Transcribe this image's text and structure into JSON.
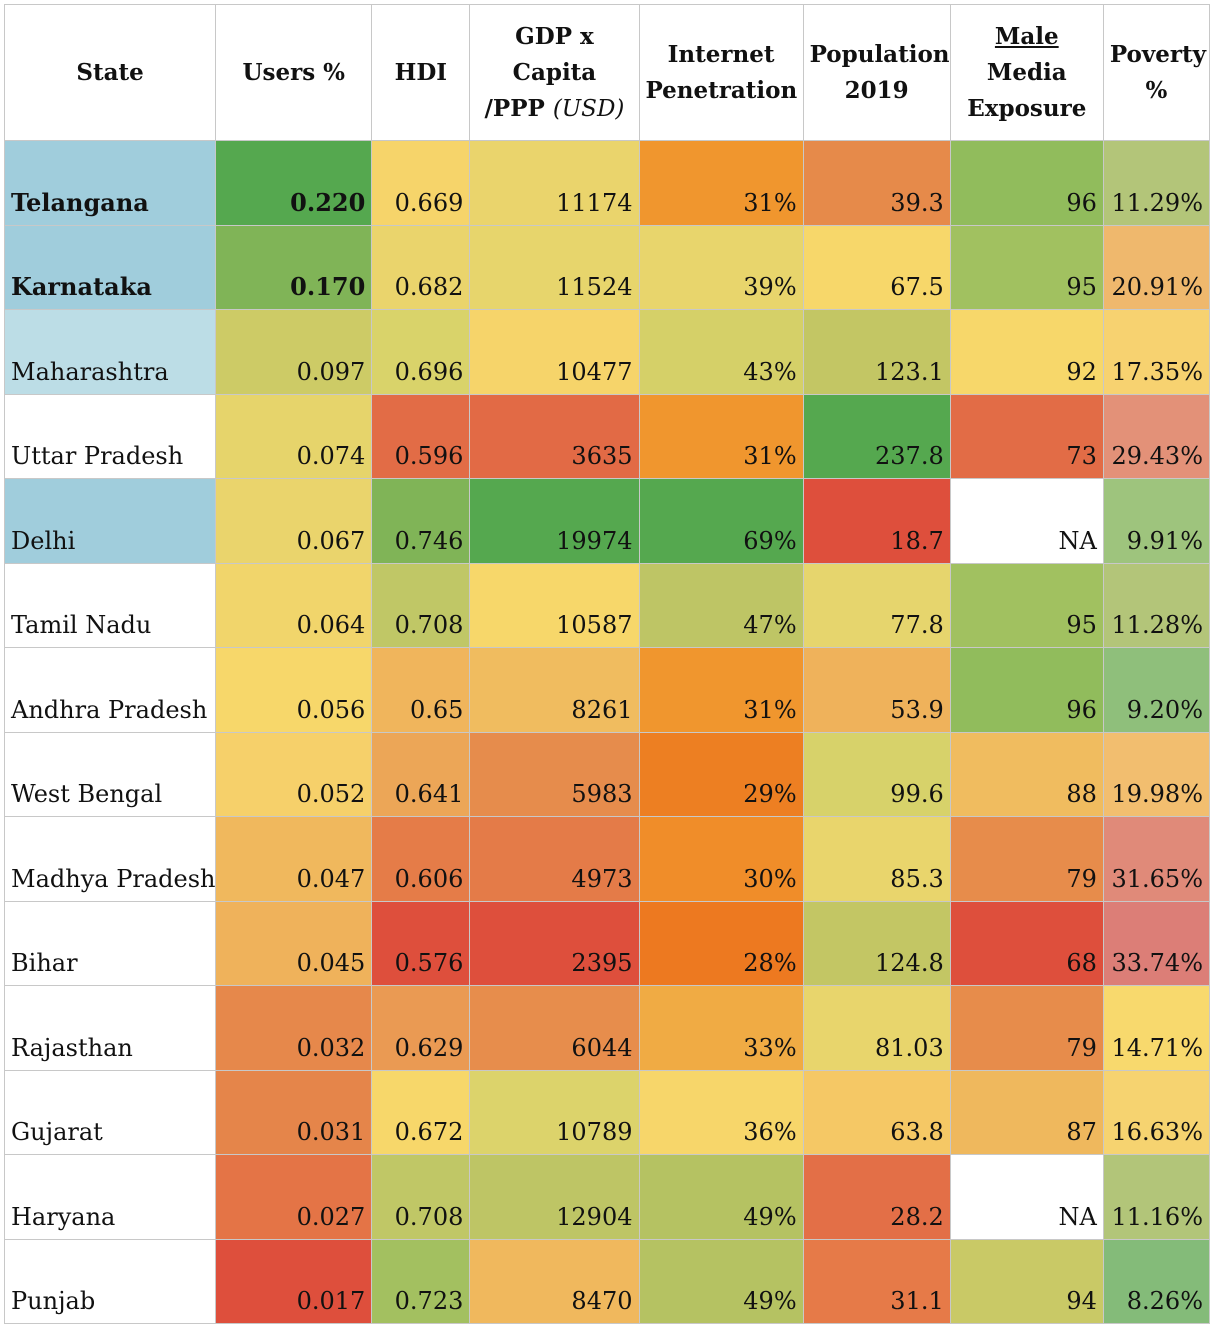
{
  "chart_data": {
    "type": "table",
    "headers": {
      "state": "State",
      "users": "Users %",
      "hdi": "HDI",
      "gdp_a": "GDP x Capita",
      "gdp_b": "/PPP",
      "gdp_unit": "(USD)",
      "internet_a": "Internet",
      "internet_b": "Penetration",
      "population_a": "Population",
      "population_b": "2019",
      "media_a": "Male",
      "media_b": "Media",
      "media_c": "Exposure",
      "poverty_a": "Poverty",
      "poverty_b": "%"
    },
    "rows": [
      {
        "state": "Telangana",
        "users": "0.220",
        "hdi": "0.669",
        "gdp": "11174",
        "internet": "31%",
        "population": "39.3",
        "media": "96",
        "poverty": "11.29%",
        "bold": true,
        "colors": {
          "state": "#a0cddc",
          "users": "#55a84f",
          "hdi": "#f6d46a",
          "gdp": "#ead46c",
          "internet": "#f0962e",
          "population": "#e68a4a",
          "media": "#91bc5c",
          "poverty": "#b3c579"
        }
      },
      {
        "state": "Karnataka",
        "users": "0.170",
        "hdi": "0.682",
        "gdp": "11524",
        "internet": "39%",
        "population": "67.5",
        "media": "95",
        "poverty": "20.91%",
        "bold": true,
        "colors": {
          "state": "#a0cddc",
          "users": "#80b457",
          "hdi": "#ead46c",
          "gdp": "#e7d56c",
          "internet": "#e8d56c",
          "population": "#f7d76a",
          "media": "#a1c160",
          "poverty": "#efb86d"
        }
      },
      {
        "state": "Maharashtra",
        "users": "0.097",
        "hdi": "0.696",
        "gdp": "10477",
        "internet": "43%",
        "population": "123.1",
        "media": "92",
        "poverty": "17.35%",
        "bold": false,
        "colors": {
          "state": "#bcdde6",
          "users": "#cdcb66",
          "hdi": "#d9d36a",
          "gdp": "#f6d46a",
          "internet": "#d5d068",
          "population": "#c3c664",
          "media": "#f7d76a",
          "poverty": "#f7d270"
        }
      },
      {
        "state": "Uttar Pradesh",
        "users": "0.074",
        "hdi": "0.596",
        "gdp": "3635",
        "internet": "31%",
        "population": "237.8",
        "media": "73",
        "poverty": "29.43%",
        "bold": false,
        "colors": {
          "state": "#ffffff",
          "users": "#e6d46b",
          "hdi": "#e26c46",
          "gdp": "#e26a45",
          "internet": "#f0962e",
          "population": "#55a84f",
          "media": "#e26c46",
          "poverty": "#e39178"
        }
      },
      {
        "state": "Delhi",
        "users": "0.067",
        "hdi": "0.746",
        "gdp": "19974",
        "internet": "69%",
        "population": "18.7",
        "media": "NA",
        "poverty": "9.91%",
        "bold": false,
        "colors": {
          "state": "#a0cddc",
          "users": "#ead46c",
          "hdi": "#80b457",
          "gdp": "#55a84f",
          "internet": "#55a84f",
          "population": "#de4f3c",
          "media": "#ffffff",
          "poverty": "#9ec47d"
        }
      },
      {
        "state": "Tamil Nadu",
        "users": "0.064",
        "hdi": "0.708",
        "gdp": "10587",
        "internet": "47%",
        "population": "77.8",
        "media": "95",
        "poverty": "11.28%",
        "bold": false,
        "colors": {
          "state": "#ffffff",
          "users": "#f1d56b",
          "hdi": "#c0c766",
          "gdp": "#f7d76a",
          "internet": "#bec565",
          "population": "#e6d56d",
          "media": "#a1c160",
          "poverty": "#b3c579"
        }
      },
      {
        "state": "Andhra Pradesh",
        "users": "0.056",
        "hdi": "0.65",
        "gdp": "8261",
        "internet": "31%",
        "population": "53.9",
        "media": "96",
        "poverty": "9.20%",
        "bold": false,
        "colors": {
          "state": "#ffffff",
          "users": "#f7d76a",
          "hdi": "#f0b55c",
          "gdp": "#f0bc5f",
          "internet": "#f0962e",
          "population": "#efb25b",
          "media": "#91bc5c",
          "poverty": "#8fbf7b"
        }
      },
      {
        "state": "West Bengal",
        "users": "0.052",
        "hdi": "0.641",
        "gdp": "5983",
        "internet": "29%",
        "population": "99.6",
        "media": "88",
        "poverty": "19.98%",
        "bold": false,
        "colors": {
          "state": "#ffffff",
          "users": "#f6d06a",
          "hdi": "#eca657",
          "gdp": "#e68c4c",
          "internet": "#ed7f22",
          "population": "#d7d26a",
          "media": "#f0bc5f",
          "poverty": "#f2be6f"
        }
      },
      {
        "state": "Madhya Pradesh",
        "users": "0.047",
        "hdi": "0.606",
        "gdp": "4973",
        "internet": "30%",
        "population": "85.3",
        "media": "79",
        "poverty": "31.65%",
        "bold": false,
        "colors": {
          "state": "#ffffff",
          "users": "#f0b85d",
          "hdi": "#e57c48",
          "gdp": "#e47b48",
          "internet": "#f08d29",
          "population": "#e9d56c",
          "media": "#e78c4b",
          "poverty": "#e08a79"
        }
      },
      {
        "state": "Bihar",
        "users": "0.045",
        "hdi": "0.576",
        "gdp": "2395",
        "internet": "28%",
        "population": "124.8",
        "media": "68",
        "poverty": "33.74%",
        "bold": false,
        "colors": {
          "state": "#ffffff",
          "users": "#efb25b",
          "hdi": "#de4f3c",
          "gdp": "#de4f3c",
          "internet": "#ed7920",
          "population": "#c3c664",
          "media": "#de4f3c",
          "poverty": "#dc7e77"
        }
      },
      {
        "state": "Rajasthan",
        "users": "0.032",
        "hdi": "0.629",
        "gdp": "6044",
        "internet": "33%",
        "population": "81.03",
        "media": "79",
        "poverty": "14.71%",
        "bold": false,
        "colors": {
          "state": "#ffffff",
          "users": "#e6884b",
          "hdi": "#ea9a53",
          "gdp": "#e78d4c",
          "internet": "#f0ab44",
          "population": "#e8d56c",
          "media": "#e78c4b",
          "poverty": "#f8d96d"
        }
      },
      {
        "state": "Gujarat",
        "users": "0.031",
        "hdi": "0.672",
        "gdp": "10789",
        "internet": "36%",
        "population": "63.8",
        "media": "87",
        "poverty": "16.63%",
        "bold": false,
        "colors": {
          "state": "#ffffff",
          "users": "#e5854a",
          "hdi": "#f7d76a",
          "gdp": "#dcd36b",
          "internet": "#f7d66a",
          "population": "#f5c865",
          "media": "#efb85d",
          "poverty": "#f6d370"
        }
      },
      {
        "state": "Haryana",
        "users": "0.027",
        "hdi": "0.708",
        "gdp": "12904",
        "internet": "49%",
        "population": "28.2",
        "media": "NA",
        "poverty": "11.16%",
        "bold": false,
        "colors": {
          "state": "#ffffff",
          "users": "#e47446",
          "hdi": "#c0c766",
          "gdp": "#bec565",
          "internet": "#b5c262",
          "population": "#e36f47",
          "media": "#ffffff",
          "poverty": "#b2c579"
        }
      },
      {
        "state": "Punjab",
        "users": "0.017",
        "hdi": "0.723",
        "gdp": "8470",
        "internet": "49%",
        "population": "31.1",
        "media": "94",
        "poverty": "8.26%",
        "bold": false,
        "colors": {
          "state": "#ffffff",
          "users": "#de4f3c",
          "hdi": "#a3c060",
          "gdp": "#f0b85d",
          "internet": "#b5c262",
          "population": "#e67a48",
          "media": "#c9c966",
          "poverty": "#84bb79"
        }
      }
    ]
  }
}
